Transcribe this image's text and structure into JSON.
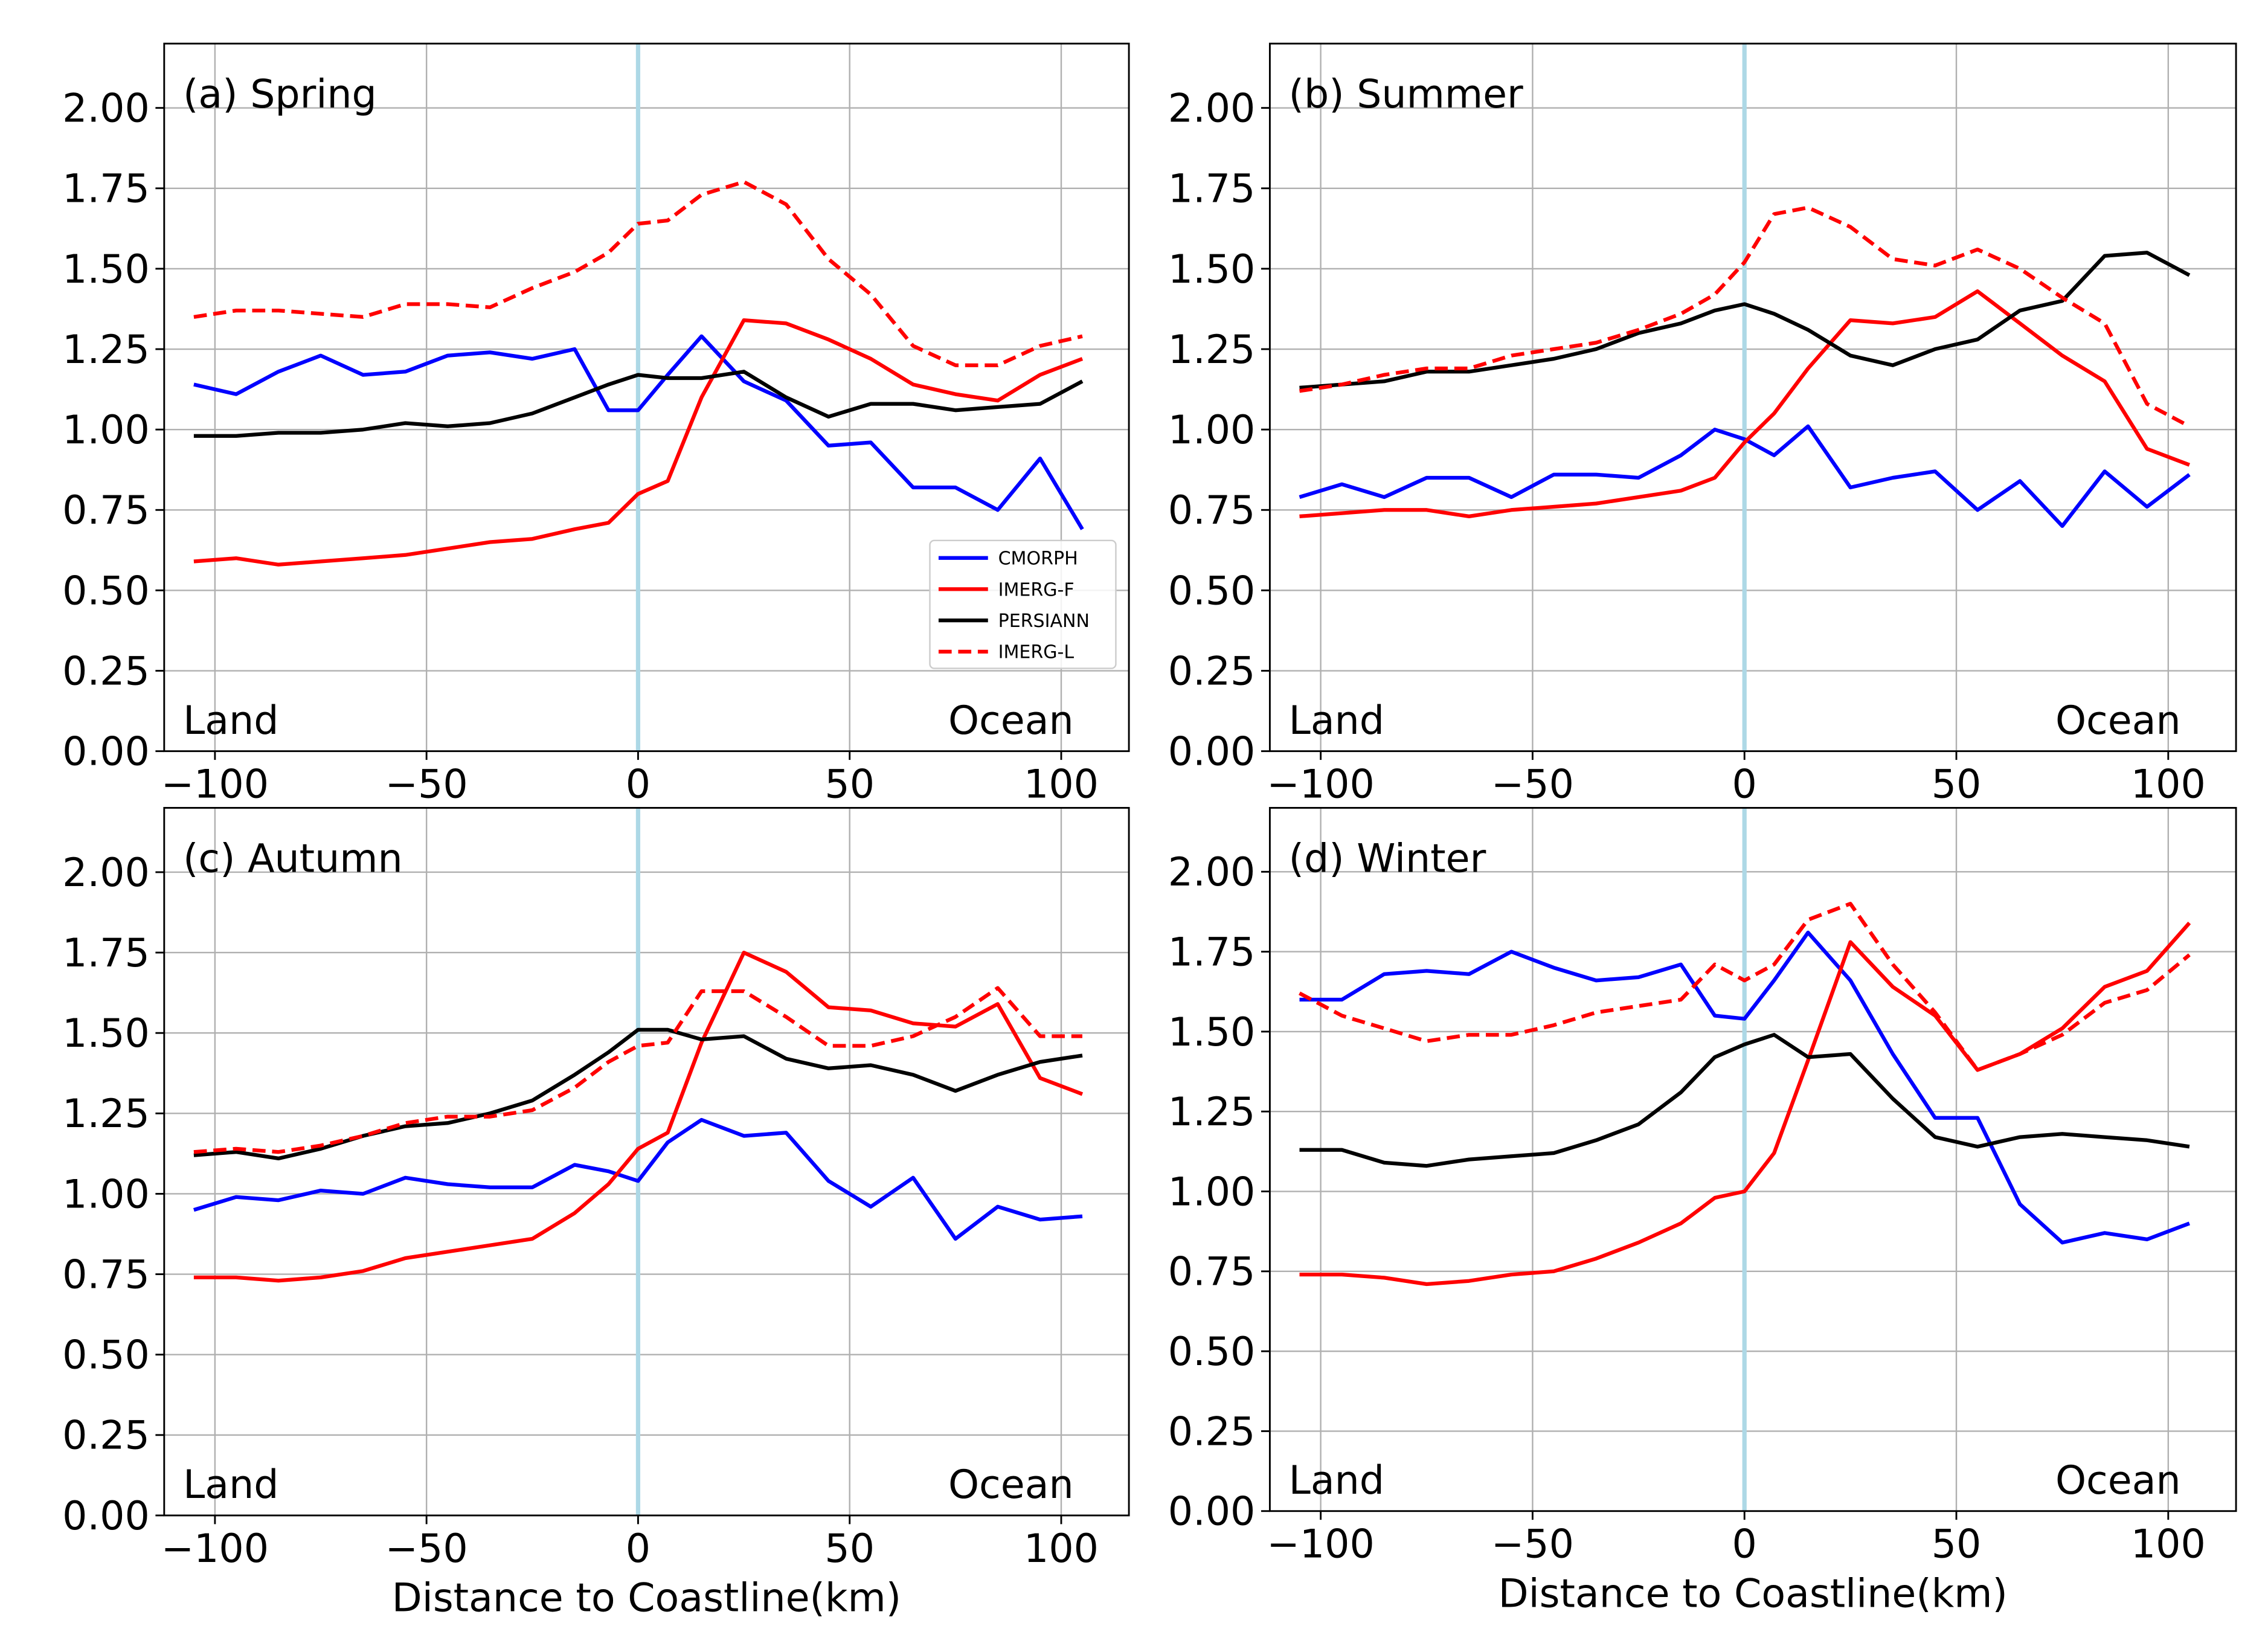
{
  "chart_data": [
    {
      "type": "line",
      "title": "(a) Spring",
      "xlabel": "",
      "ylabel": "",
      "xlim": [
        -112,
        116
      ],
      "ylim": [
        0,
        2.2
      ],
      "xticks": [
        -100,
        -50,
        0,
        50,
        100
      ],
      "xtick_labels": [
        "−100",
        "−50",
        "0",
        "50",
        "100"
      ],
      "yticks": [
        0,
        0.25,
        0.5,
        0.75,
        1.0,
        1.25,
        1.5,
        1.75,
        2.0
      ],
      "ytick_labels": [
        "0.00",
        "0.25",
        "0.50",
        "0.75",
        "1.00",
        "1.25",
        "1.50",
        "1.75",
        "2.00"
      ],
      "grid": true,
      "coastline_x": 0,
      "land_label": "Land",
      "ocean_label": "Ocean",
      "legend": {
        "position": "center-right",
        "entries": [
          "CMORPH",
          "IMERG-F",
          "PERSIANN",
          "IMERG-L"
        ]
      },
      "x": [
        -105,
        -95,
        -85,
        -75,
        -65,
        -55,
        -45,
        -35,
        -25,
        -15,
        -7,
        0,
        7,
        15,
        25,
        35,
        45,
        55,
        65,
        75,
        85,
        95,
        105
      ],
      "series": [
        {
          "name": "CMORPH",
          "color": "#0000ff",
          "dash": "solid",
          "values": [
            1.14,
            1.11,
            1.18,
            1.23,
            1.17,
            1.18,
            1.23,
            1.24,
            1.22,
            1.25,
            1.06,
            1.06,
            1.17,
            1.29,
            1.15,
            1.09,
            0.95,
            0.96,
            0.82,
            0.82,
            0.75,
            0.91,
            0.69
          ]
        },
        {
          "name": "IMERG-F",
          "color": "#ff0000",
          "dash": "solid",
          "values": [
            0.59,
            0.6,
            0.58,
            0.59,
            0.6,
            0.61,
            0.63,
            0.65,
            0.66,
            0.69,
            0.71,
            0.8,
            0.84,
            1.1,
            1.34,
            1.33,
            1.28,
            1.22,
            1.14,
            1.11,
            1.09,
            1.17,
            1.22
          ]
        },
        {
          "name": "PERSIANN",
          "color": "#000000",
          "dash": "solid",
          "values": [
            0.98,
            0.98,
            0.99,
            0.99,
            1.0,
            1.02,
            1.01,
            1.02,
            1.05,
            1.1,
            1.14,
            1.17,
            1.16,
            1.16,
            1.18,
            1.1,
            1.04,
            1.08,
            1.08,
            1.06,
            1.07,
            1.08,
            1.15
          ]
        },
        {
          "name": "IMERG-L",
          "color": "#ff0000",
          "dash": "dashed",
          "values": [
            1.35,
            1.37,
            1.37,
            1.36,
            1.35,
            1.39,
            1.39,
            1.38,
            1.44,
            1.49,
            1.55,
            1.64,
            1.65,
            1.73,
            1.77,
            1.7,
            1.53,
            1.42,
            1.26,
            1.2,
            1.2,
            1.26,
            1.29
          ]
        }
      ]
    },
    {
      "type": "line",
      "title": "(b) Summer",
      "xlabel": "",
      "ylabel": "",
      "xlim": [
        -112,
        116
      ],
      "ylim": [
        0,
        2.2
      ],
      "xticks": [
        -100,
        -50,
        0,
        50,
        100
      ],
      "xtick_labels": [
        "−100",
        "−50",
        "0",
        "50",
        "100"
      ],
      "yticks": [
        0,
        0.25,
        0.5,
        0.75,
        1.0,
        1.25,
        1.5,
        1.75,
        2.0
      ],
      "ytick_labels": [
        "0.00",
        "0.25",
        "0.50",
        "0.75",
        "1.00",
        "1.25",
        "1.50",
        "1.75",
        "2.00"
      ],
      "grid": true,
      "coastline_x": 0,
      "land_label": "Land",
      "ocean_label": "Ocean",
      "x": [
        -105,
        -95,
        -85,
        -75,
        -65,
        -55,
        -45,
        -35,
        -25,
        -15,
        -7,
        0,
        7,
        15,
        25,
        35,
        45,
        55,
        65,
        75,
        85,
        95,
        105
      ],
      "series": [
        {
          "name": "CMORPH",
          "color": "#0000ff",
          "dash": "solid",
          "values": [
            0.79,
            0.83,
            0.79,
            0.85,
            0.85,
            0.79,
            0.86,
            0.86,
            0.85,
            0.92,
            1.0,
            0.97,
            0.92,
            1.01,
            0.82,
            0.85,
            0.87,
            0.75,
            0.84,
            0.7,
            0.87,
            0.76,
            0.86
          ]
        },
        {
          "name": "IMERG-F",
          "color": "#ff0000",
          "dash": "solid",
          "values": [
            0.73,
            0.74,
            0.75,
            0.75,
            0.73,
            0.75,
            0.76,
            0.77,
            0.79,
            0.81,
            0.85,
            0.96,
            1.05,
            1.19,
            1.34,
            1.33,
            1.35,
            1.43,
            1.33,
            1.23,
            1.15,
            0.94,
            0.89
          ]
        },
        {
          "name": "PERSIANN",
          "color": "#000000",
          "dash": "solid",
          "values": [
            1.13,
            1.14,
            1.15,
            1.18,
            1.18,
            1.2,
            1.22,
            1.25,
            1.3,
            1.33,
            1.37,
            1.39,
            1.36,
            1.31,
            1.23,
            1.2,
            1.25,
            1.28,
            1.37,
            1.4,
            1.54,
            1.55,
            1.48
          ]
        },
        {
          "name": "IMERG-L",
          "color": "#ff0000",
          "dash": "dashed",
          "values": [
            1.12,
            1.14,
            1.17,
            1.19,
            1.19,
            1.23,
            1.25,
            1.27,
            1.31,
            1.36,
            1.42,
            1.52,
            1.67,
            1.69,
            1.63,
            1.53,
            1.51,
            1.56,
            1.5,
            1.41,
            1.33,
            1.08,
            1.01
          ]
        }
      ]
    },
    {
      "type": "line",
      "title": "(c) Autumn",
      "xlabel": "Distance to Coastline(km)",
      "ylabel": "",
      "xlim": [
        -112,
        116
      ],
      "ylim": [
        0,
        2.2
      ],
      "xticks": [
        -100,
        -50,
        0,
        50,
        100
      ],
      "xtick_labels": [
        "−100",
        "−50",
        "0",
        "50",
        "100"
      ],
      "yticks": [
        0,
        0.25,
        0.5,
        0.75,
        1.0,
        1.25,
        1.5,
        1.75,
        2.0
      ],
      "ytick_labels": [
        "0.00",
        "0.25",
        "0.50",
        "0.75",
        "1.00",
        "1.25",
        "1.50",
        "1.75",
        "2.00"
      ],
      "grid": true,
      "coastline_x": 0,
      "land_label": "Land",
      "ocean_label": "Ocean",
      "x": [
        -105,
        -95,
        -85,
        -75,
        -65,
        -55,
        -45,
        -35,
        -25,
        -15,
        -7,
        0,
        7,
        15,
        25,
        35,
        45,
        55,
        65,
        75,
        85,
        95,
        105
      ],
      "series": [
        {
          "name": "CMORPH",
          "color": "#0000ff",
          "dash": "solid",
          "values": [
            0.95,
            0.99,
            0.98,
            1.01,
            1.0,
            1.05,
            1.03,
            1.02,
            1.02,
            1.09,
            1.07,
            1.04,
            1.16,
            1.23,
            1.18,
            1.19,
            1.04,
            0.96,
            1.05,
            0.86,
            0.96,
            0.92,
            0.93
          ]
        },
        {
          "name": "IMERG-F",
          "color": "#ff0000",
          "dash": "solid",
          "values": [
            0.74,
            0.74,
            0.73,
            0.74,
            0.76,
            0.8,
            0.82,
            0.84,
            0.86,
            0.94,
            1.03,
            1.14,
            1.19,
            1.47,
            1.75,
            1.69,
            1.58,
            1.57,
            1.53,
            1.52,
            1.59,
            1.36,
            1.31
          ]
        },
        {
          "name": "PERSIANN",
          "color": "#000000",
          "dash": "solid",
          "values": [
            1.12,
            1.13,
            1.11,
            1.14,
            1.18,
            1.21,
            1.22,
            1.25,
            1.29,
            1.37,
            1.44,
            1.51,
            1.51,
            1.48,
            1.49,
            1.42,
            1.39,
            1.4,
            1.37,
            1.32,
            1.37,
            1.41,
            1.43
          ]
        },
        {
          "name": "IMERG-L",
          "color": "#ff0000",
          "dash": "dashed",
          "values": [
            1.13,
            1.14,
            1.13,
            1.15,
            1.18,
            1.22,
            1.24,
            1.24,
            1.26,
            1.33,
            1.41,
            1.46,
            1.47,
            1.63,
            1.63,
            1.55,
            1.46,
            1.46,
            1.49,
            1.55,
            1.64,
            1.49,
            1.49
          ]
        }
      ]
    },
    {
      "type": "line",
      "title": "(d) Winter",
      "xlabel": "Distance to Coastline(km)",
      "ylabel": "",
      "xlim": [
        -112,
        116
      ],
      "ylim": [
        0,
        2.2
      ],
      "xticks": [
        -100,
        -50,
        0,
        50,
        100
      ],
      "xtick_labels": [
        "−100",
        "−50",
        "0",
        "50",
        "100"
      ],
      "yticks": [
        0,
        0.25,
        0.5,
        0.75,
        1.0,
        1.25,
        1.5,
        1.75,
        2.0
      ],
      "ytick_labels": [
        "0.00",
        "0.25",
        "0.50",
        "0.75",
        "1.00",
        "1.25",
        "1.50",
        "1.75",
        "2.00"
      ],
      "grid": true,
      "coastline_x": 0,
      "land_label": "Land",
      "ocean_label": "Ocean",
      "x": [
        -105,
        -95,
        -85,
        -75,
        -65,
        -55,
        -45,
        -35,
        -25,
        -15,
        -7,
        0,
        7,
        15,
        25,
        35,
        45,
        55,
        65,
        75,
        85,
        95,
        105
      ],
      "series": [
        {
          "name": "CMORPH",
          "color": "#0000ff",
          "dash": "solid",
          "values": [
            1.6,
            1.6,
            1.68,
            1.69,
            1.68,
            1.75,
            1.7,
            1.66,
            1.67,
            1.71,
            1.55,
            1.54,
            1.66,
            1.81,
            1.66,
            1.43,
            1.23,
            1.23,
            0.96,
            0.84,
            0.87,
            0.85,
            0.9
          ]
        },
        {
          "name": "IMERG-F",
          "color": "#ff0000",
          "dash": "solid",
          "values": [
            0.74,
            0.74,
            0.73,
            0.71,
            0.72,
            0.74,
            0.75,
            0.79,
            0.84,
            0.9,
            0.98,
            1.0,
            1.12,
            1.41,
            1.78,
            1.64,
            1.55,
            1.38,
            1.43,
            1.51,
            1.64,
            1.69,
            1.84
          ]
        },
        {
          "name": "PERSIANN",
          "color": "#000000",
          "dash": "solid",
          "values": [
            1.13,
            1.13,
            1.09,
            1.08,
            1.1,
            1.11,
            1.12,
            1.16,
            1.21,
            1.31,
            1.42,
            1.46,
            1.49,
            1.42,
            1.43,
            1.29,
            1.17,
            1.14,
            1.17,
            1.18,
            1.17,
            1.16,
            1.14
          ]
        },
        {
          "name": "IMERG-L",
          "color": "#ff0000",
          "dash": "dashed",
          "values": [
            1.62,
            1.55,
            1.51,
            1.47,
            1.49,
            1.49,
            1.52,
            1.56,
            1.58,
            1.6,
            1.71,
            1.66,
            1.71,
            1.85,
            1.9,
            1.71,
            1.56,
            1.38,
            1.43,
            1.49,
            1.59,
            1.63,
            1.74
          ]
        }
      ]
    }
  ]
}
